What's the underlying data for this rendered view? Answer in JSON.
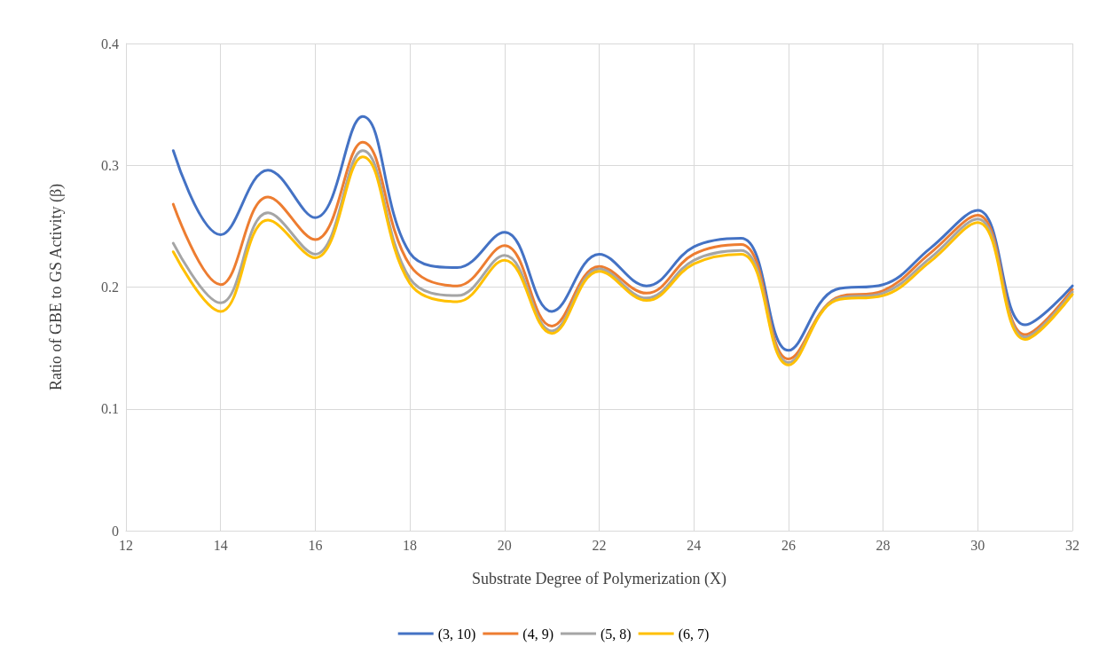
{
  "chart_data": {
    "type": "line",
    "xlabel": "Substrate Degree of Polymerization (X)",
    "ylabel": "Ratio of GBE to GS Activity (β)",
    "x": [
      13,
      14,
      15,
      16,
      17,
      18,
      19,
      20,
      21,
      22,
      23,
      24,
      25,
      26,
      27,
      28,
      29,
      30,
      31,
      32
    ],
    "series": [
      {
        "name": "(3, 10)",
        "color": "#4472c4",
        "values": [
          0.312,
          0.243,
          0.296,
          0.257,
          0.34,
          0.228,
          0.216,
          0.245,
          0.18,
          0.227,
          0.201,
          0.233,
          0.24,
          0.148,
          0.198,
          0.202,
          0.232,
          0.263,
          0.169,
          0.201
        ]
      },
      {
        "name": "(4, 9)",
        "color": "#ed7d31",
        "values": [
          0.268,
          0.202,
          0.274,
          0.239,
          0.319,
          0.218,
          0.201,
          0.234,
          0.168,
          0.217,
          0.195,
          0.227,
          0.235,
          0.141,
          0.191,
          0.197,
          0.228,
          0.259,
          0.161,
          0.198
        ]
      },
      {
        "name": "(5, 8)",
        "color": "#a5a5a5",
        "values": [
          0.236,
          0.187,
          0.261,
          0.227,
          0.312,
          0.207,
          0.193,
          0.226,
          0.164,
          0.215,
          0.191,
          0.222,
          0.23,
          0.138,
          0.19,
          0.195,
          0.224,
          0.256,
          0.159,
          0.196
        ]
      },
      {
        "name": "(6, 7)",
        "color": "#ffc000",
        "values": [
          0.229,
          0.18,
          0.255,
          0.224,
          0.307,
          0.203,
          0.188,
          0.222,
          0.162,
          0.213,
          0.189,
          0.219,
          0.227,
          0.136,
          0.189,
          0.193,
          0.221,
          0.253,
          0.157,
          0.194
        ]
      }
    ],
    "xlim": [
      12,
      32
    ],
    "xticks": [
      12,
      14,
      16,
      18,
      20,
      22,
      24,
      26,
      28,
      30,
      32
    ],
    "ylim": [
      0,
      0.4
    ],
    "yticks": [
      0,
      0.1,
      0.2,
      0.3,
      0.4
    ],
    "grid": true,
    "legend": "bottom",
    "marker": "none",
    "line_style": "solid"
  }
}
